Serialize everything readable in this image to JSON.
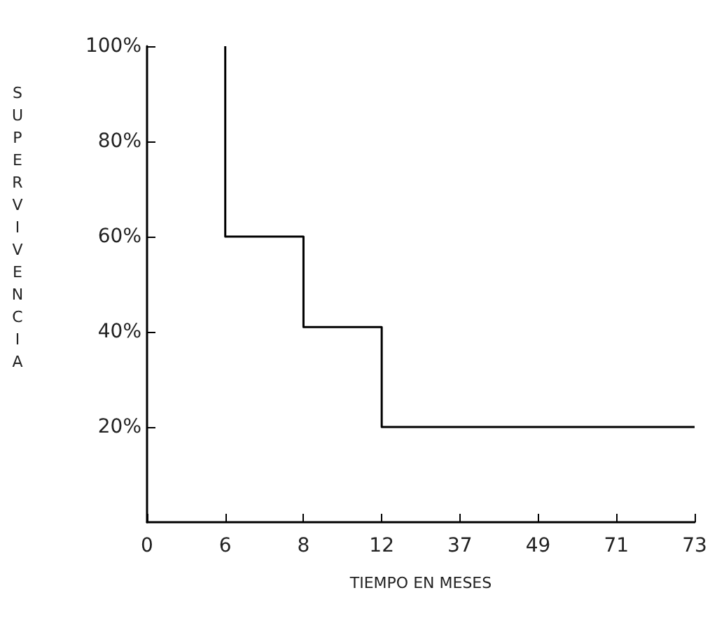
{
  "chart_data": {
    "type": "step",
    "xlabel": "TIEMPO EN MESES",
    "ylabel": "SUPERVIVENCIA",
    "categories": [
      "0",
      "6",
      "8",
      "12",
      "37",
      "49",
      "71",
      "73"
    ],
    "series": [
      {
        "color": "#000000",
        "values": [
          null,
          100,
          60,
          41,
          20,
          20,
          20,
          20
        ]
      }
    ],
    "ylim": [
      0,
      100
    ],
    "yticks": [
      {
        "value": 20,
        "label": "20%"
      },
      {
        "value": 40,
        "label": "40%"
      },
      {
        "value": 60,
        "label": "60%"
      },
      {
        "value": 80,
        "label": "80%"
      },
      {
        "value": 100,
        "label": "100%"
      }
    ],
    "grid": false,
    "marker": "none",
    "line_style": "solid"
  }
}
